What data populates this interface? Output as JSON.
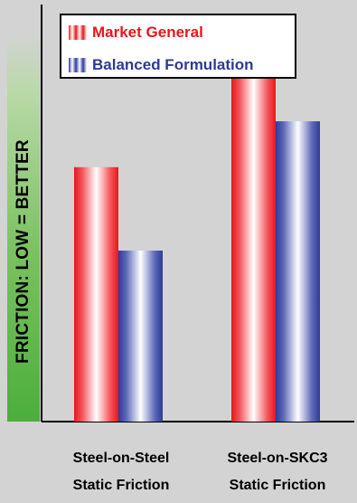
{
  "chart_data": {
    "type": "bar",
    "categories": [
      [
        "Steel-on-Steel",
        "Static Friction"
      ],
      [
        "Steel-on-SKC3",
        "Static Friction"
      ]
    ],
    "series": [
      {
        "name": "Market General",
        "values": [
          61,
          88
        ]
      },
      {
        "name": "Balanced Formulation",
        "values": [
          41,
          72
        ]
      }
    ],
    "ylabel": "FRICTION: LOW = BETTER",
    "ylim": [
      0,
      100
    ],
    "grid": false,
    "legend_position": "top",
    "colors": {
      "Market General": "#e8161d",
      "Balanced Formulation": "#2e3a98"
    }
  }
}
